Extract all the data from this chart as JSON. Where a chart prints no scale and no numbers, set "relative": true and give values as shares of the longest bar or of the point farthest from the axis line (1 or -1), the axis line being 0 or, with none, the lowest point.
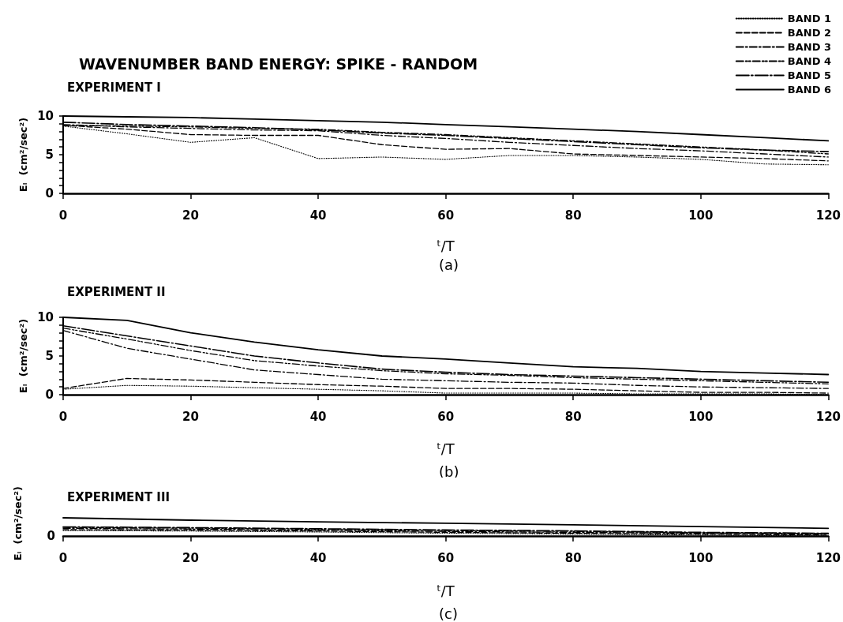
{
  "chart_data": [
    {
      "type": "line",
      "title": "WAVENUMBER BAND ENERGY: SPIKE - RANDOM",
      "subtitle": "EXPERIMENT I",
      "xlabel": "ᵗ/T",
      "ylabel": "Eᵢ  (cm²/sec²)",
      "annotations": [
        "(a)"
      ],
      "x": [
        0,
        10,
        20,
        30,
        40,
        50,
        60,
        70,
        80,
        90,
        100,
        110,
        120
      ],
      "series": [
        {
          "name": "BAND 1",
          "color": "#000000",
          "line_style": "dotted",
          "values": [
            8.7,
            7.7,
            6.6,
            7.2,
            4.5,
            4.7,
            4.4,
            4.9,
            4.9,
            4.7,
            4.4,
            3.8,
            3.7
          ]
        },
        {
          "name": "BAND 2",
          "color": "#000000",
          "line_style": "dashed",
          "values": [
            8.8,
            8.3,
            7.6,
            7.5,
            7.5,
            6.3,
            5.7,
            5.8,
            5.1,
            4.9,
            4.7,
            4.5,
            4.2
          ]
        },
        {
          "name": "BAND 3",
          "color": "#000000",
          "line_style": "dashdot",
          "values": [
            8.9,
            8.6,
            8.4,
            8.2,
            8.1,
            7.5,
            7.1,
            6.6,
            6.2,
            5.8,
            5.5,
            5.1,
            4.7
          ]
        },
        {
          "name": "BAND 4",
          "color": "#000000",
          "line_style": "dashdotdot",
          "values": [
            8.8,
            8.7,
            8.6,
            8.4,
            8.3,
            7.9,
            7.6,
            7.2,
            6.8,
            6.4,
            6.0,
            5.6,
            5.1
          ]
        },
        {
          "name": "BAND 5",
          "color": "#000000",
          "line_style": "longdashdot",
          "values": [
            9.2,
            8.9,
            8.7,
            8.5,
            8.2,
            7.8,
            7.5,
            7.1,
            6.7,
            6.3,
            5.9,
            5.6,
            5.4
          ]
        },
        {
          "name": "BAND 6",
          "color": "#000000",
          "line_style": "solid",
          "values": [
            10.0,
            9.9,
            9.8,
            9.6,
            9.4,
            9.2,
            8.9,
            8.6,
            8.3,
            8.0,
            7.6,
            7.2,
            6.8
          ]
        }
      ],
      "xlim": [
        0,
        120
      ],
      "xticks": [
        0,
        20,
        40,
        60,
        80,
        100,
        120
      ],
      "ylim": [
        0,
        10
      ],
      "yticks": [
        0,
        {
          "value": 1,
          "label": null
        },
        {
          "value": 2,
          "label": null
        },
        {
          "value": 3,
          "label": null
        },
        {
          "value": 4,
          "label": null
        },
        5,
        {
          "value": 6,
          "label": null
        },
        {
          "value": 7,
          "label": null
        },
        {
          "value": 8,
          "label": null
        },
        {
          "value": 9,
          "label": null
        },
        10
      ],
      "grid": false,
      "legend": "top right",
      "marker": "none"
    },
    {
      "type": "line",
      "subtitle": "EXPERIMENT II",
      "xlabel": "ᵗ/T",
      "ylabel": "Eᵢ  (cm²/sec²)",
      "annotations": [
        "(b)"
      ],
      "x": [
        0,
        10,
        20,
        30,
        40,
        50,
        60,
        70,
        80,
        90,
        100,
        110,
        120
      ],
      "series": [
        {
          "color": "#000000",
          "line_style": "dotted",
          "values": [
            0.7,
            1.2,
            1.1,
            0.9,
            0.7,
            0.5,
            0.2,
            0.2,
            0.2,
            0.1,
            0.1,
            0.1,
            0.0
          ]
        },
        {
          "color": "#000000",
          "line_style": "dashed",
          "values": [
            0.8,
            2.1,
            1.9,
            1.6,
            1.3,
            1.1,
            0.8,
            0.8,
            0.7,
            0.5,
            0.3,
            0.3,
            0.2
          ]
        },
        {
          "color": "#000000",
          "line_style": "dashdot",
          "values": [
            8.3,
            6.0,
            4.6,
            3.2,
            2.6,
            2.0,
            1.8,
            1.6,
            1.5,
            1.2,
            1.0,
            0.9,
            0.8
          ]
        },
        {
          "color": "#000000",
          "line_style": "dashdotdot",
          "values": [
            8.6,
            7.2,
            5.7,
            4.4,
            3.7,
            3.1,
            2.7,
            2.5,
            2.2,
            2.0,
            1.8,
            1.6,
            1.4
          ]
        },
        {
          "color": "#000000",
          "line_style": "longdashdot",
          "values": [
            8.9,
            7.6,
            6.3,
            5.0,
            4.1,
            3.3,
            2.9,
            2.6,
            2.4,
            2.2,
            2.0,
            1.8,
            1.6
          ]
        },
        {
          "color": "#000000",
          "line_style": "solid",
          "values": [
            10.0,
            9.6,
            8.0,
            6.8,
            5.8,
            5.0,
            4.6,
            4.1,
            3.6,
            3.4,
            3.0,
            2.8,
            2.6
          ]
        }
      ],
      "xlim": [
        0,
        120
      ],
      "xticks": [
        0,
        20,
        40,
        60,
        80,
        100,
        120
      ],
      "ylim": [
        0,
        10
      ],
      "yticks": [
        0,
        {
          "value": 1,
          "label": null
        },
        {
          "value": 2,
          "label": null
        },
        {
          "value": 3,
          "label": null
        },
        {
          "value": 4,
          "label": null
        },
        5,
        {
          "value": 6,
          "label": null
        },
        {
          "value": 7,
          "label": null
        },
        {
          "value": 8,
          "label": null
        },
        {
          "value": 9,
          "label": null
        },
        10
      ],
      "grid": false,
      "marker": "none"
    },
    {
      "type": "line",
      "subtitle": "EXPERIMENT III",
      "xlabel": "ᵗ/T",
      "ylabel": "Eᵢ  (cm²/sec²)",
      "annotations": [
        "0",
        "(c)"
      ],
      "x": [
        0,
        20,
        40,
        60,
        80,
        100,
        120
      ],
      "series": [
        {
          "color": "#000000",
          "line_style": "dotted",
          "values": [
            0.3,
            0.27,
            0.22,
            0.15,
            0.1,
            0.05,
            0.0
          ]
        },
        {
          "color": "#000000",
          "line_style": "dashed",
          "values": [
            0.35,
            0.32,
            0.27,
            0.2,
            0.15,
            0.1,
            0.05
          ]
        },
        {
          "color": "#000000",
          "line_style": "dashdot",
          "values": [
            0.42,
            0.38,
            0.32,
            0.25,
            0.2,
            0.15,
            0.1
          ]
        },
        {
          "color": "#000000",
          "line_style": "dashdotdot",
          "values": [
            0.47,
            0.43,
            0.37,
            0.3,
            0.25,
            0.18,
            0.13
          ]
        },
        {
          "color": "#000000",
          "line_style": "longdashdot",
          "values": [
            0.5,
            0.46,
            0.4,
            0.33,
            0.28,
            0.2,
            0.15
          ]
        },
        {
          "color": "#000000",
          "line_style": "solid",
          "values": [
            1.0,
            0.87,
            0.78,
            0.7,
            0.61,
            0.52,
            0.42
          ]
        }
      ],
      "relative": true,
      "xlim": [
        0,
        120
      ],
      "xticks": [
        0,
        20,
        40,
        60,
        80,
        100,
        120
      ],
      "grid": false,
      "marker": "none"
    }
  ]
}
